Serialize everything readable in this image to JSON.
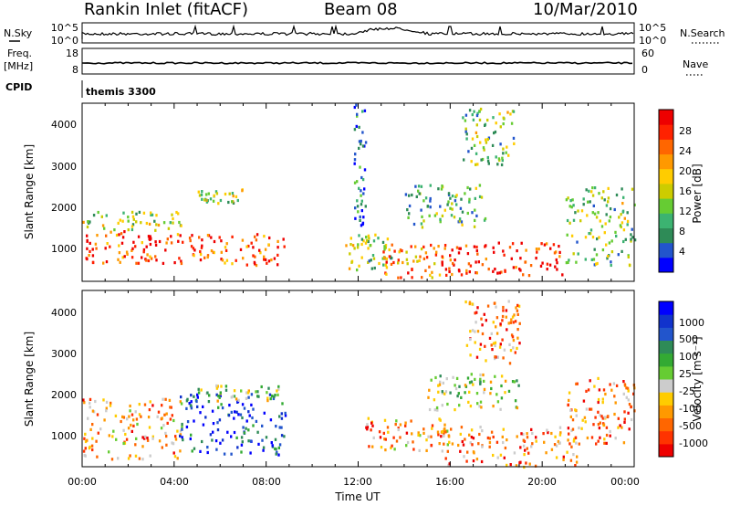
{
  "header": {
    "station": "Rankin Inlet (fitACF)",
    "beam": "Beam 08",
    "date": "10/Mar/2010"
  },
  "strips": {
    "nsky_label": "N.Sky",
    "nsky_ticks": [
      "10^5",
      "10^0"
    ],
    "nsearch_label": "N.Search",
    "nsearch_ticks": [
      "10^5",
      "10^0"
    ],
    "freq_label": "Freq.",
    "freq_unit": "[MHz]",
    "freq_ticks": [
      "18",
      "8"
    ],
    "nave_label": "Nave",
    "nave_ticks": [
      "60",
      "0"
    ],
    "cpid_label": "CPID",
    "cpid_value": "themis 3300"
  },
  "colors": {
    "power_scale": [
      "#0000ff",
      "#2255cc",
      "#2e8b57",
      "#3cb371",
      "#66cc33",
      "#cccc00",
      "#ffcc00",
      "#ff9900",
      "#ff6600",
      "#ff2200",
      "#ee0000"
    ],
    "velocity_scale": [
      "#ee0000",
      "#ff3300",
      "#ff6600",
      "#ff9900",
      "#ffcc00",
      "#cccccc",
      "#66cc33",
      "#33aa33",
      "#2e8b57",
      "#2255cc",
      "#1133cc",
      "#0000ff"
    ],
    "curve": "#000000"
  },
  "chart_data": [
    {
      "type": "heatmap",
      "name": "power",
      "ylabel": "Slant Range [km]",
      "xlim": [
        0,
        24
      ],
      "ylim": [
        180,
        4500
      ],
      "yticks": [
        "1000",
        "2000",
        "3000",
        "4000"
      ],
      "colorbar_label": "Power [dB]",
      "colorbar_ticks": [
        "4",
        "8",
        "12",
        "16",
        "20",
        "24",
        "28"
      ],
      "colorbar_range": [
        0,
        32
      ],
      "regions": [
        {
          "t": [
            0.0,
            4.3
          ],
          "r": [
            650,
            1450
          ],
          "level": 0.85
        },
        {
          "t": [
            0.0,
            4.3
          ],
          "r": [
            1450,
            1900
          ],
          "level": 0.45
        },
        {
          "t": [
            4.2,
            8.8
          ],
          "r": [
            600,
            1350
          ],
          "level": 0.8
        },
        {
          "t": [
            5.0,
            7.0
          ],
          "r": [
            2100,
            2450
          ],
          "level": 0.45
        },
        {
          "t": [
            11.3,
            13.5
          ],
          "r": [
            450,
            1350
          ],
          "level": 0.4
        },
        {
          "t": [
            13.0,
            15.8
          ],
          "r": [
            300,
            1100
          ],
          "level": 0.7
        },
        {
          "t": [
            15.5,
            21.0
          ],
          "r": [
            350,
            1150
          ],
          "level": 0.9
        },
        {
          "t": [
            14.0,
            17.5
          ],
          "r": [
            1500,
            2550
          ],
          "level": 0.35
        },
        {
          "t": [
            21.0,
            24.0
          ],
          "r": [
            600,
            2500
          ],
          "level": 0.4
        },
        {
          "t": [
            11.8,
            12.3
          ],
          "r": [
            1400,
            4500
          ],
          "level": 0.2
        },
        {
          "t": [
            16.5,
            18.8
          ],
          "r": [
            3000,
            4400
          ],
          "level": 0.4
        }
      ]
    },
    {
      "type": "heatmap",
      "name": "velocity",
      "ylabel": "Slant Range [km]",
      "xlabel": "Time UT",
      "xlim": [
        0,
        24
      ],
      "ylim": [
        180,
        4500
      ],
      "xticks": [
        "00:00",
        "04:00",
        "08:00",
        "12:00",
        "16:00",
        "20:00",
        "00:00"
      ],
      "yticks": [
        "1000",
        "2000",
        "3000",
        "4000"
      ],
      "colorbar_label": "Velocity [m s⁻¹]",
      "colorbar_ticks": [
        "1000",
        "500",
        "100",
        "25",
        "-25",
        "-100",
        "-500",
        "-1000"
      ],
      "regions": [
        {
          "t": [
            0.0,
            4.3
          ],
          "r": [
            400,
            1900
          ],
          "level": 0.3
        },
        {
          "t": [
            4.2,
            8.8
          ],
          "r": [
            500,
            2000
          ],
          "level": 0.85
        },
        {
          "t": [
            5.0,
            8.5
          ],
          "r": [
            1800,
            2200
          ],
          "level": 0.5
        },
        {
          "t": [
            12.3,
            16.0
          ],
          "r": [
            600,
            1400
          ],
          "level": 0.3
        },
        {
          "t": [
            15.5,
            21.5
          ],
          "r": [
            200,
            1200
          ],
          "level": 0.25
        },
        {
          "t": [
            15.0,
            19.0
          ],
          "r": [
            1600,
            2500
          ],
          "level": 0.5
        },
        {
          "t": [
            21.0,
            24.0
          ],
          "r": [
            700,
            2400
          ],
          "level": 0.25
        },
        {
          "t": [
            16.5,
            19.0
          ],
          "r": [
            2700,
            4300
          ],
          "level": 0.25
        }
      ]
    }
  ]
}
